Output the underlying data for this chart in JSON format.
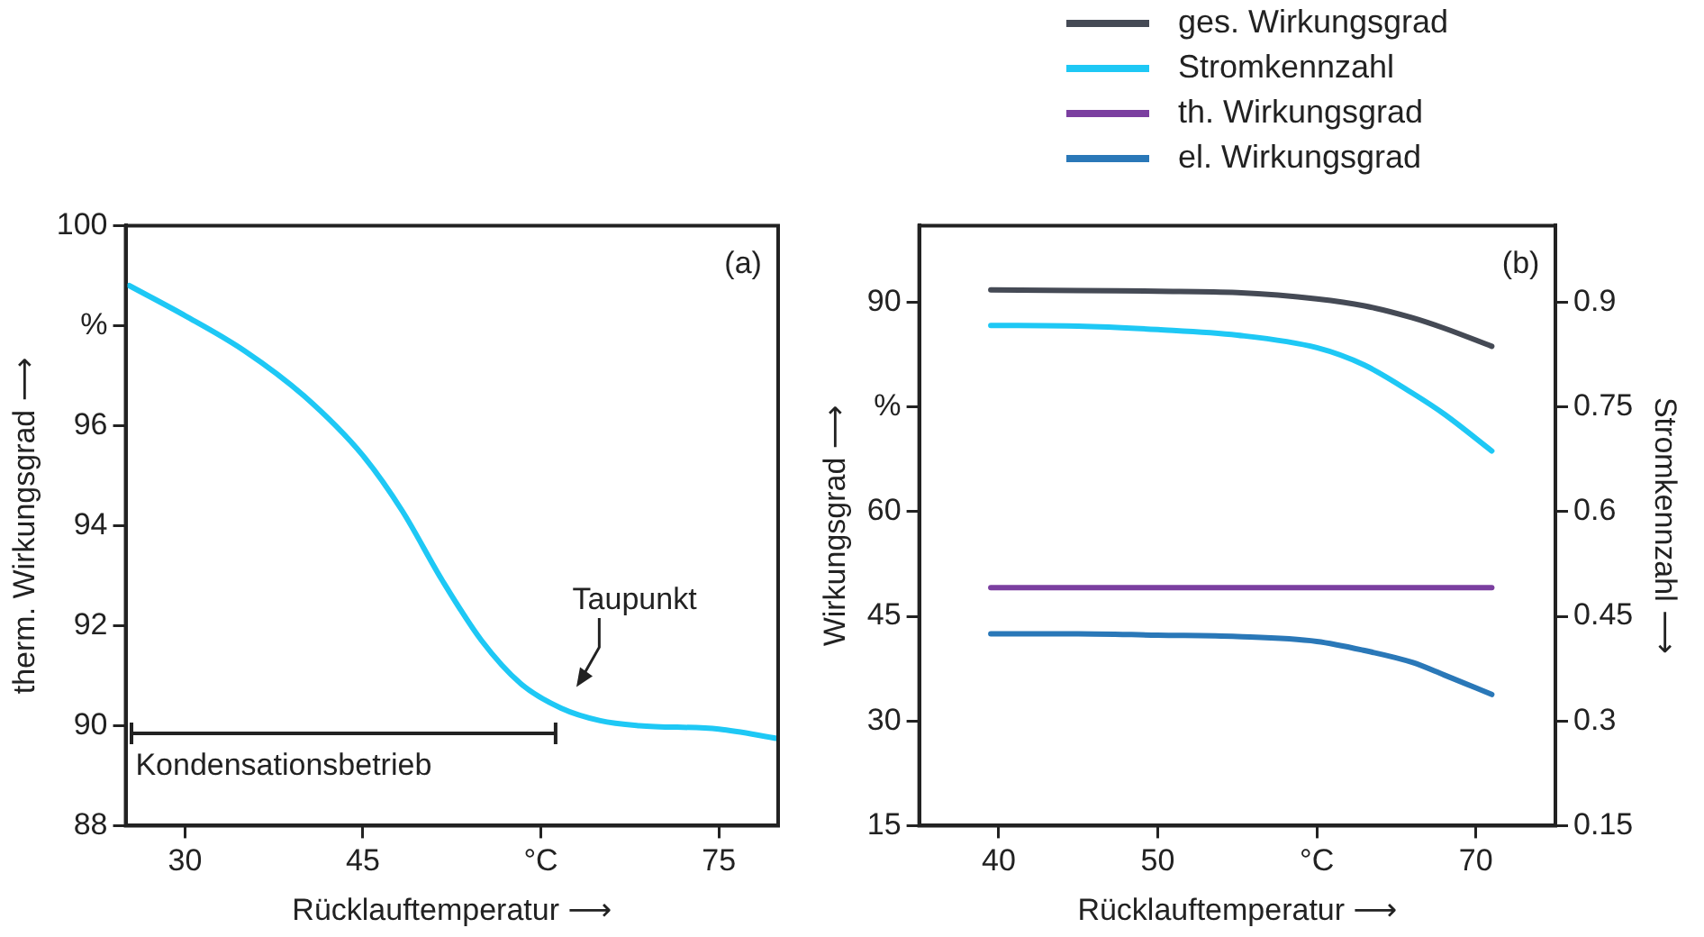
{
  "chart_data": [
    {
      "type": "line",
      "xlabel": "Rücklauftemperatur ⟶",
      "ylabel": "therm. Wirkungsgrad ⟶",
      "annotations": [
        "(a)",
        "Taupunkt",
        "Kondensationsbetrieb"
      ],
      "xlim": [
        25,
        80
      ],
      "xticks": [
        30,
        45,
        {
          "value": 60,
          "label": "°C"
        },
        75
      ],
      "ylim": [
        88,
        100
      ],
      "yticks": [
        88,
        90,
        92,
        94,
        96,
        {
          "value": 98,
          "label": "%"
        },
        100
      ],
      "grid": false,
      "legend": false,
      "series": [
        {
          "color": "#1ec8f5",
          "x": [
            25.3,
            30,
            35,
            40,
            45,
            48.3,
            51.7,
            55,
            58.3,
            61.7,
            65,
            68.3,
            75,
            80
          ],
          "values": [
            98.8,
            98.2,
            97.5,
            96.6,
            95.4,
            94.3,
            92.9,
            91.7,
            90.84,
            90.35,
            90.1,
            90.0,
            89.93,
            89.74
          ]
        }
      ]
    },
    {
      "type": "line",
      "xlabel": "Rücklauftemperatur ⟶",
      "ylabel": "Wirkungsgrad ⟶",
      "y2label": "Stromkennzahl ⟶",
      "annotations": [
        "(b)"
      ],
      "xlim": [
        35,
        75
      ],
      "xticks": [
        40,
        50,
        {
          "value": 60,
          "label": "°C"
        },
        70
      ],
      "ylim": [
        15,
        101
      ],
      "yticks": [
        15,
        30,
        45,
        60,
        {
          "value": 75,
          "label": "%"
        },
        90
      ],
      "y2lim": [
        0.15,
        1.01
      ],
      "y2ticks": [
        0.15,
        0.3,
        0.45,
        0.6,
        0.75,
        0.9
      ],
      "grid": false,
      "legend": "top",
      "series": [
        {
          "name": "ges. Wirkungsgrad",
          "color": "#454a55",
          "x": [
            39.5,
            45,
            50,
            55,
            60,
            63,
            66,
            68,
            71
          ],
          "values": [
            91.8,
            91.7,
            91.6,
            91.4,
            90.5,
            89.5,
            87.8,
            86.3,
            83.7
          ]
        },
        {
          "name": "Stromkennzahl",
          "color": "#1ec8f5",
          "axis": "y2",
          "x": [
            39.5,
            45,
            50,
            55,
            60,
            63,
            66,
            68,
            71
          ],
          "values": [
            0.867,
            0.866,
            0.861,
            0.853,
            0.835,
            0.81,
            0.77,
            0.74,
            0.687
          ]
        },
        {
          "name": "th. Wirkungsgrad",
          "color": "#7b3fa0",
          "x": [
            39.5,
            45,
            50,
            55,
            60,
            63,
            66,
            68,
            71
          ],
          "values": [
            49.1,
            49.1,
            49.1,
            49.1,
            49.1,
            49.1,
            49.1,
            49.1,
            49.1
          ]
        },
        {
          "name": "el. Wirkungsgrad",
          "color": "#2a78b8",
          "x": [
            39.5,
            45,
            50,
            55,
            60,
            63,
            66,
            68,
            71
          ],
          "values": [
            42.5,
            42.5,
            42.3,
            42.1,
            41.4,
            40.1,
            38.4,
            36.6,
            33.8
          ]
        }
      ]
    }
  ]
}
